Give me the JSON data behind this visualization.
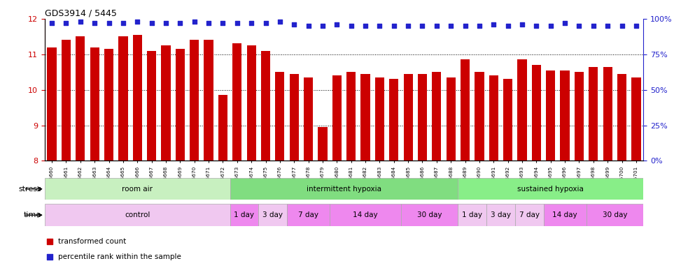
{
  "title": "GDS3914 / 5445",
  "samples": [
    "GSM215660",
    "GSM215661",
    "GSM215662",
    "GSM215663",
    "GSM215664",
    "GSM215665",
    "GSM215666",
    "GSM215667",
    "GSM215668",
    "GSM215669",
    "GSM215670",
    "GSM215671",
    "GSM215672",
    "GSM215673",
    "GSM215674",
    "GSM215675",
    "GSM215676",
    "GSM215677",
    "GSM215678",
    "GSM215679",
    "GSM215680",
    "GSM215681",
    "GSM215682",
    "GSM215683",
    "GSM215684",
    "GSM215685",
    "GSM215686",
    "GSM215687",
    "GSM215688",
    "GSM215689",
    "GSM215690",
    "GSM215691",
    "GSM215692",
    "GSM215693",
    "GSM215694",
    "GSM215695",
    "GSM215696",
    "GSM215697",
    "GSM215698",
    "GSM215699",
    "GSM215700",
    "GSM215701"
  ],
  "bar_values": [
    11.2,
    11.4,
    11.5,
    11.2,
    11.15,
    11.5,
    11.55,
    11.1,
    11.25,
    11.15,
    11.4,
    11.4,
    9.85,
    11.3,
    11.25,
    11.1,
    10.5,
    10.45,
    10.35,
    8.95,
    10.4,
    10.5,
    10.45,
    10.35,
    10.3,
    10.45,
    10.45,
    10.5,
    10.35,
    10.85,
    10.5,
    10.4,
    10.3,
    10.85,
    10.7,
    10.55,
    10.55,
    10.5,
    10.65,
    10.65,
    10.45,
    10.35
  ],
  "percentile_values": [
    97,
    97,
    98,
    97,
    97,
    97,
    98,
    97,
    97,
    97,
    98,
    97,
    97,
    97,
    97,
    97,
    98,
    96,
    95,
    95,
    96,
    95,
    95,
    95,
    95,
    95,
    95,
    95,
    95,
    95,
    95,
    96,
    95,
    96,
    95,
    95,
    97,
    95,
    95,
    95,
    95,
    95
  ],
  "bar_color": "#cc0000",
  "percentile_color": "#2222cc",
  "ylim": [
    8,
    12
  ],
  "yticks": [
    8,
    9,
    10,
    11,
    12
  ],
  "y2lim": [
    0,
    100
  ],
  "y2ticks": [
    0,
    25,
    50,
    75,
    100
  ],
  "stress_groups": [
    {
      "label": "room air",
      "start": 0,
      "end": 13,
      "color": "#c8f0c0"
    },
    {
      "label": "intermittent hypoxia",
      "start": 13,
      "end": 29,
      "color": "#80dd80"
    },
    {
      "label": "sustained hypoxia",
      "start": 29,
      "end": 42,
      "color": "#88ee88"
    }
  ],
  "time_groups": [
    {
      "label": "control",
      "start": 0,
      "end": 13,
      "color": "#f0c8f0"
    },
    {
      "label": "1 day",
      "start": 13,
      "end": 15,
      "color": "#ee88ee"
    },
    {
      "label": "3 day",
      "start": 15,
      "end": 17,
      "color": "#f0c8f0"
    },
    {
      "label": "7 day",
      "start": 17,
      "end": 20,
      "color": "#ee88ee"
    },
    {
      "label": "14 day",
      "start": 20,
      "end": 25,
      "color": "#ee88ee"
    },
    {
      "label": "30 day",
      "start": 25,
      "end": 29,
      "color": "#ee88ee"
    },
    {
      "label": "1 day",
      "start": 29,
      "end": 31,
      "color": "#f0c8f0"
    },
    {
      "label": "3 day",
      "start": 31,
      "end": 33,
      "color": "#f0c8f0"
    },
    {
      "label": "7 day",
      "start": 33,
      "end": 35,
      "color": "#f0c8f0"
    },
    {
      "label": "14 day",
      "start": 35,
      "end": 38,
      "color": "#ee88ee"
    },
    {
      "label": "30 day",
      "start": 38,
      "end": 42,
      "color": "#ee88ee"
    }
  ],
  "legend_items": [
    {
      "label": "transformed count",
      "color": "#cc0000",
      "marker": "s"
    },
    {
      "label": "percentile rank within the sample",
      "color": "#2222cc",
      "marker": "s"
    }
  ],
  "stress_label": "stress",
  "time_label": "time"
}
